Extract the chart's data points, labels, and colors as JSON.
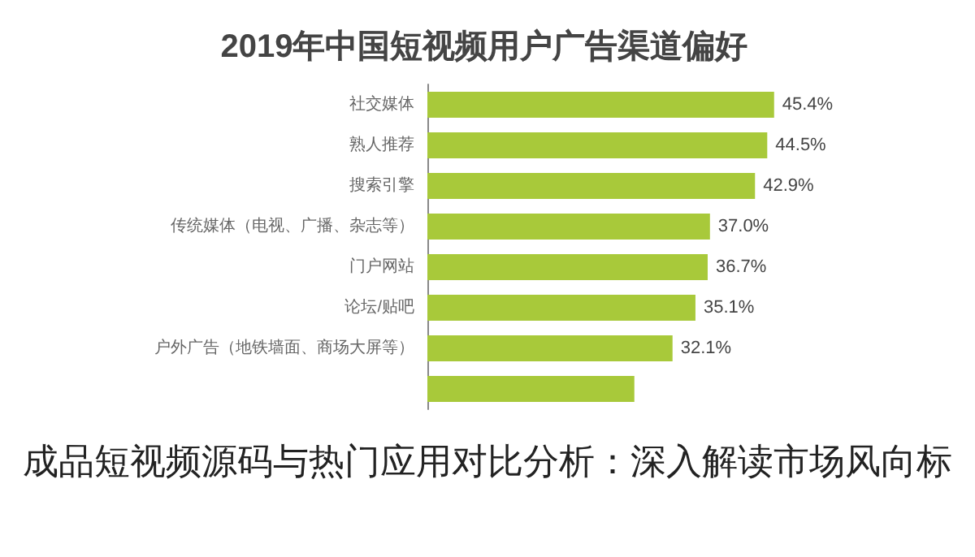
{
  "chart_data": {
    "type": "bar",
    "orientation": "horizontal",
    "title": "2019年中国短视频用户广告渠道偏好",
    "categories": [
      "社交媒体",
      "熟人推荐",
      "搜索引擎",
      "传统媒体（电视、广播、杂志等）",
      "门户网站",
      "论坛/贴吧",
      "户外广告（地铁墙面、商场大屏等）",
      null
    ],
    "values": [
      45.4,
      44.5,
      42.9,
      37.0,
      36.7,
      35.1,
      32.1,
      27.1
    ],
    "value_labels": [
      "45.4%",
      "44.5%",
      "42.9%",
      "37.0%",
      "36.7%",
      "35.1%",
      "32.1%",
      null
    ],
    "color": "#a8c93a",
    "annotations": [
      "成品短视频源码与热门应用对比分析：深入解读市场风向标"
    ]
  }
}
